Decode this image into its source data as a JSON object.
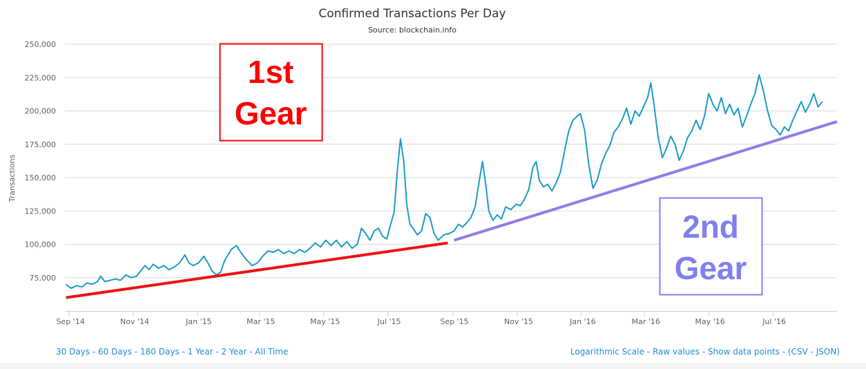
{
  "chart_data": {
    "type": "line",
    "title": "Confirmed Transactions Per Day",
    "subtitle": "Source: blockchain.info",
    "ylabel": "Transactions",
    "xlabel": "",
    "ylim": [
      50000,
      250000
    ],
    "yticks": [
      75000,
      100000,
      125000,
      150000,
      175000,
      200000,
      225000,
      250000
    ],
    "ytick_labels": [
      "75,000",
      "100,000",
      "125,000",
      "150,000",
      "175,000",
      "200,000",
      "225,000",
      "250,000"
    ],
    "xlim": [
      "2014-08-28",
      "2016-08-31"
    ],
    "xticks": [
      {
        "date": "2014-09-01",
        "label": "Sep '14"
      },
      {
        "date": "2014-11-01",
        "label": "Nov '14"
      },
      {
        "date": "2015-01-01",
        "label": "Jan '15"
      },
      {
        "date": "2015-03-01",
        "label": "Mar '15"
      },
      {
        "date": "2015-05-01",
        "label": "May '15"
      },
      {
        "date": "2015-07-01",
        "label": "Jul '15"
      },
      {
        "date": "2015-09-01",
        "label": "Sep '15"
      },
      {
        "date": "2015-11-01",
        "label": "Nov '15"
      },
      {
        "date": "2016-01-01",
        "label": "Jan '16"
      },
      {
        "date": "2016-03-01",
        "label": "Mar '16"
      },
      {
        "date": "2016-05-01",
        "label": "May '16"
      },
      {
        "date": "2016-07-01",
        "label": "Jul '16"
      }
    ],
    "grid": true,
    "legend": "none",
    "series": [
      {
        "color": "#1a9bc4",
        "points": [
          [
            "2014-08-29",
            70000
          ],
          [
            "2014-09-03",
            67000
          ],
          [
            "2014-09-08",
            69000
          ],
          [
            "2014-09-13",
            68000
          ],
          [
            "2014-09-18",
            71000
          ],
          [
            "2014-09-23",
            70000
          ],
          [
            "2014-09-28",
            72000
          ],
          [
            "2014-10-01",
            76000
          ],
          [
            "2014-10-05",
            72000
          ],
          [
            "2014-10-10",
            73000
          ],
          [
            "2014-10-15",
            74000
          ],
          [
            "2014-10-20",
            73000
          ],
          [
            "2014-10-25",
            77000
          ],
          [
            "2014-10-30",
            75000
          ],
          [
            "2014-11-04",
            76000
          ],
          [
            "2014-11-08",
            80000
          ],
          [
            "2014-11-12",
            84000
          ],
          [
            "2014-11-16",
            81000
          ],
          [
            "2014-11-20",
            85000
          ],
          [
            "2014-11-25",
            82000
          ],
          [
            "2014-11-30",
            84000
          ],
          [
            "2014-12-05",
            81000
          ],
          [
            "2014-12-10",
            83000
          ],
          [
            "2014-12-15",
            86000
          ],
          [
            "2014-12-20",
            92000
          ],
          [
            "2014-12-24",
            86000
          ],
          [
            "2014-12-28",
            84000
          ],
          [
            "2015-01-02",
            86000
          ],
          [
            "2015-01-07",
            91000
          ],
          [
            "2015-01-11",
            86000
          ],
          [
            "2015-01-15",
            80000
          ],
          [
            "2015-01-19",
            77000
          ],
          [
            "2015-01-23",
            79000
          ],
          [
            "2015-01-27",
            88000
          ],
          [
            "2015-02-02",
            96000
          ],
          [
            "2015-02-07",
            99000
          ],
          [
            "2015-02-12",
            93000
          ],
          [
            "2015-02-17",
            88000
          ],
          [
            "2015-02-22",
            84000
          ],
          [
            "2015-02-27",
            86000
          ],
          [
            "2015-03-04",
            91000
          ],
          [
            "2015-03-09",
            95000
          ],
          [
            "2015-03-14",
            94000
          ],
          [
            "2015-03-19",
            96000
          ],
          [
            "2015-03-24",
            93000
          ],
          [
            "2015-03-29",
            95000
          ],
          [
            "2015-04-03",
            93000
          ],
          [
            "2015-04-08",
            96000
          ],
          [
            "2015-04-13",
            94000
          ],
          [
            "2015-04-18",
            97000
          ],
          [
            "2015-04-23",
            101000
          ],
          [
            "2015-04-28",
            98000
          ],
          [
            "2015-05-03",
            103000
          ],
          [
            "2015-05-08",
            99000
          ],
          [
            "2015-05-13",
            103000
          ],
          [
            "2015-05-18",
            98000
          ],
          [
            "2015-05-23",
            102000
          ],
          [
            "2015-05-28",
            97000
          ],
          [
            "2015-06-02",
            100000
          ],
          [
            "2015-06-06",
            112000
          ],
          [
            "2015-06-10",
            108000
          ],
          [
            "2015-06-14",
            103000
          ],
          [
            "2015-06-18",
            110000
          ],
          [
            "2015-06-22",
            112000
          ],
          [
            "2015-06-26",
            106000
          ],
          [
            "2015-06-30",
            104000
          ],
          [
            "2015-07-04",
            116000
          ],
          [
            "2015-07-07",
            124000
          ],
          [
            "2015-07-10",
            155000
          ],
          [
            "2015-07-13",
            179000
          ],
          [
            "2015-07-16",
            163000
          ],
          [
            "2015-07-19",
            130000
          ],
          [
            "2015-07-22",
            115000
          ],
          [
            "2015-07-25",
            112000
          ],
          [
            "2015-07-29",
            107000
          ],
          [
            "2015-08-02",
            110000
          ],
          [
            "2015-08-06",
            123000
          ],
          [
            "2015-08-10",
            120000
          ],
          [
            "2015-08-14",
            108000
          ],
          [
            "2015-08-18",
            103000
          ],
          [
            "2015-08-23",
            107000
          ],
          [
            "2015-08-28",
            108000
          ],
          [
            "2015-09-02",
            110000
          ],
          [
            "2015-09-06",
            115000
          ],
          [
            "2015-09-10",
            113000
          ],
          [
            "2015-09-14",
            116000
          ],
          [
            "2015-09-18",
            120000
          ],
          [
            "2015-09-22",
            128000
          ],
          [
            "2015-09-26",
            148000
          ],
          [
            "2015-09-29",
            162000
          ],
          [
            "2015-10-02",
            145000
          ],
          [
            "2015-10-05",
            125000
          ],
          [
            "2015-10-09",
            118000
          ],
          [
            "2015-10-13",
            122000
          ],
          [
            "2015-10-17",
            119000
          ],
          [
            "2015-10-21",
            128000
          ],
          [
            "2015-10-26",
            126000
          ],
          [
            "2015-10-31",
            130000
          ],
          [
            "2015-11-04",
            129000
          ],
          [
            "2015-11-08",
            134000
          ],
          [
            "2015-11-12",
            141000
          ],
          [
            "2015-11-16",
            158000
          ],
          [
            "2015-11-19",
            162000
          ],
          [
            "2015-11-22",
            148000
          ],
          [
            "2015-11-26",
            143000
          ],
          [
            "2015-11-30",
            145000
          ],
          [
            "2015-12-04",
            140000
          ],
          [
            "2015-12-08",
            146000
          ],
          [
            "2015-12-12",
            154000
          ],
          [
            "2015-12-16",
            170000
          ],
          [
            "2015-12-20",
            185000
          ],
          [
            "2015-12-24",
            193000
          ],
          [
            "2015-12-28",
            196000
          ],
          [
            "2015-12-31",
            198000
          ],
          [
            "2016-01-04",
            186000
          ],
          [
            "2016-01-08",
            160000
          ],
          [
            "2016-01-12",
            142000
          ],
          [
            "2016-01-16",
            148000
          ],
          [
            "2016-01-20",
            160000
          ],
          [
            "2016-01-24",
            168000
          ],
          [
            "2016-01-28",
            174000
          ],
          [
            "2016-02-01",
            184000
          ],
          [
            "2016-02-05",
            188000
          ],
          [
            "2016-02-09",
            194000
          ],
          [
            "2016-02-13",
            202000
          ],
          [
            "2016-02-17",
            190000
          ],
          [
            "2016-02-21",
            200000
          ],
          [
            "2016-02-25",
            196000
          ],
          [
            "2016-02-29",
            203000
          ],
          [
            "2016-03-04",
            210000
          ],
          [
            "2016-03-07",
            221000
          ],
          [
            "2016-03-10",
            205000
          ],
          [
            "2016-03-14",
            180000
          ],
          [
            "2016-03-18",
            165000
          ],
          [
            "2016-03-22",
            172000
          ],
          [
            "2016-03-26",
            181000
          ],
          [
            "2016-03-30",
            175000
          ],
          [
            "2016-04-03",
            163000
          ],
          [
            "2016-04-07",
            170000
          ],
          [
            "2016-04-11",
            180000
          ],
          [
            "2016-04-15",
            185000
          ],
          [
            "2016-04-19",
            193000
          ],
          [
            "2016-04-23",
            186000
          ],
          [
            "2016-04-27",
            196000
          ],
          [
            "2016-05-01",
            213000
          ],
          [
            "2016-05-05",
            205000
          ],
          [
            "2016-05-09",
            200000
          ],
          [
            "2016-05-13",
            210000
          ],
          [
            "2016-05-17",
            198000
          ],
          [
            "2016-05-21",
            205000
          ],
          [
            "2016-05-25",
            197000
          ],
          [
            "2016-05-29",
            202000
          ],
          [
            "2016-06-02",
            188000
          ],
          [
            "2016-06-06",
            196000
          ],
          [
            "2016-06-10",
            205000
          ],
          [
            "2016-06-14",
            213000
          ],
          [
            "2016-06-18",
            227000
          ],
          [
            "2016-06-22",
            215000
          ],
          [
            "2016-06-26",
            200000
          ],
          [
            "2016-06-30",
            189000
          ],
          [
            "2016-07-04",
            186000
          ],
          [
            "2016-07-08",
            182000
          ],
          [
            "2016-07-12",
            188000
          ],
          [
            "2016-07-16",
            185000
          ],
          [
            "2016-07-20",
            193000
          ],
          [
            "2016-07-24",
            200000
          ],
          [
            "2016-07-28",
            207000
          ],
          [
            "2016-08-01",
            199000
          ],
          [
            "2016-08-05",
            205000
          ],
          [
            "2016-08-09",
            213000
          ],
          [
            "2016-08-13",
            203000
          ],
          [
            "2016-08-17",
            207000
          ]
        ]
      }
    ],
    "annotations": [
      {
        "text": "1st Gear",
        "lines": [
          "1st",
          "Gear"
        ],
        "color": "#ff0000"
      },
      {
        "text": "2nd Gear",
        "lines": [
          "2nd",
          "Gear"
        ],
        "color": "#7f7fee"
      }
    ],
    "trend_lines": [
      {
        "color": "#ee1111",
        "from": [
          "2014-08-29",
          60000
        ],
        "to": [
          "2015-08-27",
          101000
        ]
      },
      {
        "color": "#8a7fe6",
        "from": [
          "2015-09-02",
          103000
        ],
        "to": [
          "2016-08-31",
          192000
        ]
      }
    ]
  },
  "range_links": [
    "30 Days",
    "60 Days",
    "180 Days",
    "1 Year",
    "2 Year",
    "All Time"
  ],
  "option_links": [
    "Logarithmic Scale",
    "Raw values",
    "Show data points",
    "CSV",
    "JSON"
  ]
}
